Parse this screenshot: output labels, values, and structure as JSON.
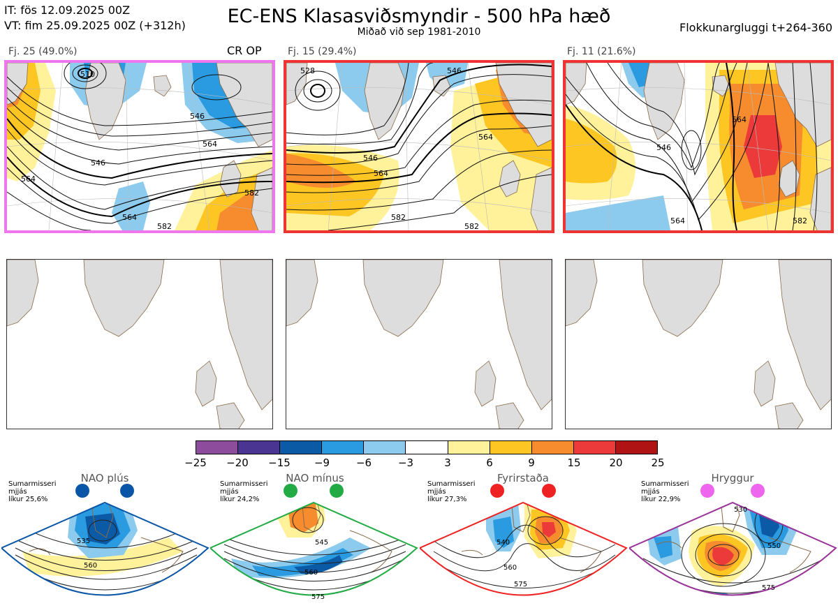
{
  "header": {
    "it_line": "IT: fös 12.09.2025 00Z",
    "vt_line": "VT: fim 25.09.2025 00Z  (+312h)",
    "title": "EC-ENS Klasasviðsmyndir - 500 hPa hæð",
    "subtitle": "Miðað við sep 1981-2010",
    "window": "Flokkunargluggi t+264-360"
  },
  "clusters": [
    {
      "label": "Fj. 25 (49.0%)",
      "frame_color": "#ee77ee",
      "tag": "CR OP",
      "contours": [
        "510",
        "546",
        "546",
        "564",
        "564",
        "564",
        "582",
        "582"
      ]
    },
    {
      "label": "Fj. 15 (29.4%)",
      "frame_color": "#ee3333",
      "tag": "",
      "contours": [
        "528",
        "546",
        "546",
        "564",
        "564",
        "582",
        "582"
      ]
    },
    {
      "label": "Fj. 11 (21.6%)",
      "frame_color": "#ee3333",
      "tag": "",
      "contours": [
        "546",
        "564",
        "564",
        "582"
      ]
    }
  ],
  "colorbar": {
    "ticks": [
      "−25",
      "−20",
      "−15",
      "−9",
      "−6",
      "−3",
      "3",
      "6",
      "9",
      "15",
      "20",
      "25"
    ],
    "colors": [
      "#8e4c9c",
      "#4b3593",
      "#0b5aa6",
      "#2a9be0",
      "#8ccbee",
      "#ffffff",
      "#fff29a",
      "#fdc623",
      "#f68c2d",
      "#ec3a3a",
      "#b01313"
    ]
  },
  "regimes": [
    {
      "name": "NAO plús",
      "season": "Sumarmisseri",
      "method": "mjjás",
      "prob": "líkur 25,6%",
      "color": "#0a56a6",
      "contours": [
        "535",
        "560"
      ]
    },
    {
      "name": "NAO mínus",
      "season": "Sumarmisseri",
      "method": "mjjás",
      "prob": "líkur 24,2%",
      "color": "#22aa44",
      "contours": [
        "545",
        "560",
        "575"
      ]
    },
    {
      "name": "Fyrirstaða",
      "season": "Sumarmisseri",
      "method": "mjjás",
      "prob": "líkur 27,3%",
      "color": "#ee2222",
      "contours": [
        "540",
        "560",
        "575"
      ]
    },
    {
      "name": "Hryggur",
      "season": "Sumarmisseri",
      "method": "mjjás",
      "prob": "líkur 22,9%",
      "color": "#ee66ee",
      "contours": [
        "530",
        "550",
        "575"
      ]
    }
  ]
}
